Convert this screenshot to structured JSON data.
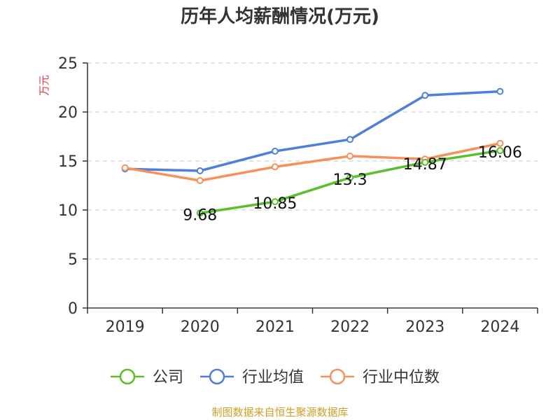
{
  "chart_data": {
    "type": "line",
    "title": "历年人均薪酬情况(万元)",
    "ylabel": "万元",
    "categories": [
      "2019",
      "2020",
      "2021",
      "2022",
      "2023",
      "2024"
    ],
    "ylim": [
      0,
      25
    ],
    "yticks": [
      0,
      5,
      10,
      15,
      20,
      25
    ],
    "grid": true,
    "legend_position": "bottom",
    "series": [
      {
        "name": "公司",
        "color": "#5bbf2b",
        "values": [
          null,
          9.68,
          10.85,
          13.3,
          14.87,
          16.06
        ],
        "labels": [
          "",
          "9.68",
          "10.85",
          "13.3",
          "14.87",
          "16.06"
        ]
      },
      {
        "name": "行业均值",
        "color": "#4f7fd8",
        "values": [
          14.2,
          14.0,
          16.0,
          17.2,
          21.7,
          22.1
        ],
        "labels": []
      },
      {
        "name": "行业中位数",
        "color": "#f4925c",
        "values": [
          14.3,
          13.0,
          14.4,
          15.5,
          15.2,
          16.8
        ],
        "labels": []
      }
    ],
    "source": "制图数据来自恒生聚源数据库"
  }
}
